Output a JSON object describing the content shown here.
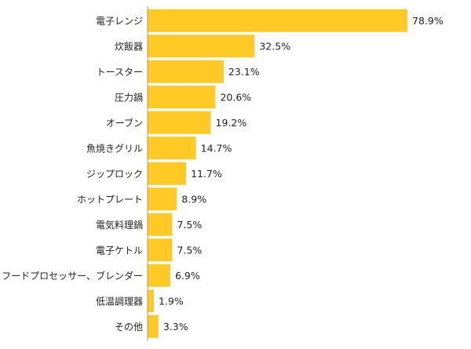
{
  "chart_data": {
    "type": "bar",
    "orientation": "horizontal",
    "categories": [
      "電子レンジ",
      "炊飯器",
      "トースター",
      "圧力鍋",
      "オーブン",
      "魚焼きグリル",
      "ジップロック",
      "ホットプレート",
      "電気料理鍋",
      "電子ケトル",
      "フードプロセッサー、ブレンダー",
      "低温調理器",
      "その他"
    ],
    "values": [
      78.9,
      32.5,
      23.1,
      20.6,
      19.2,
      14.7,
      11.7,
      8.9,
      7.5,
      7.5,
      6.9,
      1.9,
      3.3
    ],
    "value_labels": [
      "78.9%",
      "32.5%",
      "23.1%",
      "20.6%",
      "19.2%",
      "14.7%",
      "11.7%",
      "8.9%",
      "7.5%",
      "7.5%",
      "6.9%",
      "1.9%",
      "3.3%"
    ],
    "unit": "%",
    "xlim": [
      0,
      100
    ],
    "grid": false,
    "colors": {
      "bar": "#FFC926",
      "axis": "#999999",
      "text": "#222222"
    }
  }
}
